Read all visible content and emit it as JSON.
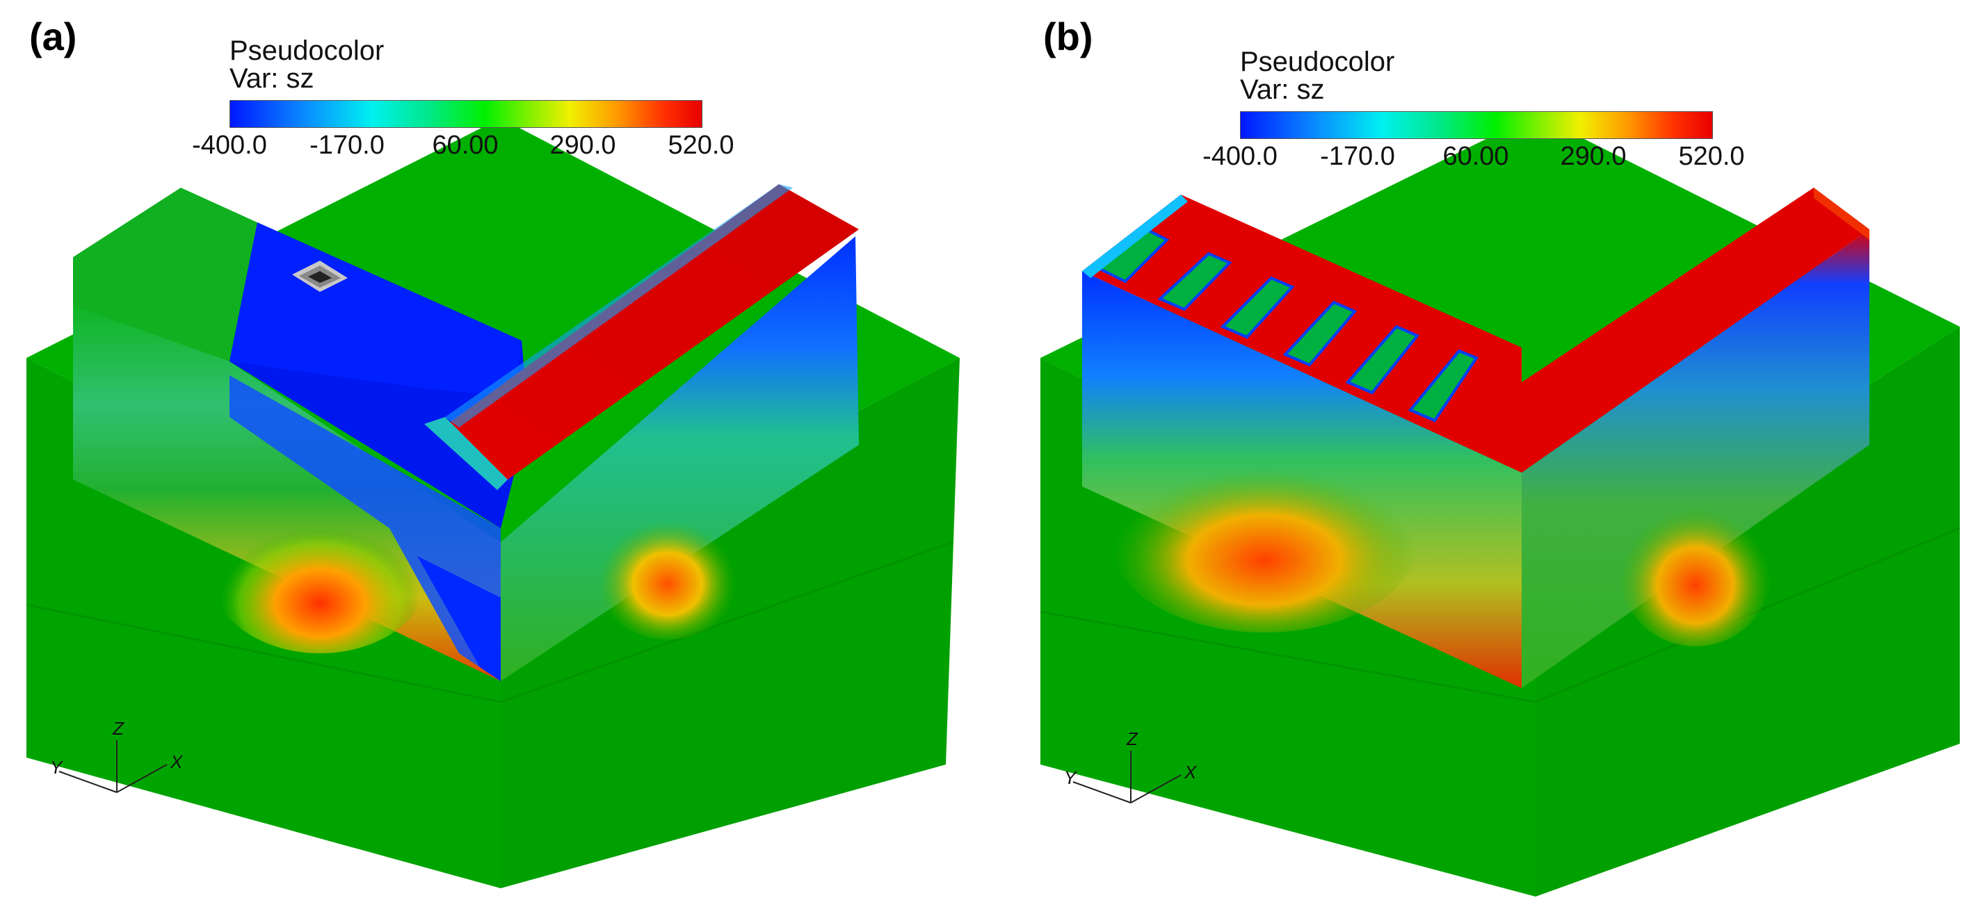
{
  "panels": [
    {
      "label": "(a)",
      "legend": {
        "title": "Pseudocolor",
        "var": "Var: sz",
        "ticks": [
          "-400.0",
          "-170.0",
          "60.00",
          "290.0",
          "520.0"
        ]
      },
      "axes": {
        "x": "X",
        "y": "Y",
        "z": "Z"
      }
    },
    {
      "label": "(b)",
      "legend": {
        "title": "Pseudocolor",
        "var": "Var: sz",
        "ticks": [
          "-400.0",
          "-170.0",
          "60.00",
          "290.0",
          "520.0"
        ]
      },
      "axes": {
        "x": "X",
        "y": "Y",
        "z": "Z"
      }
    }
  ],
  "colors": {
    "base_green": "#00a800",
    "base_green_dark": "#008800",
    "low_blue": "#0018ff",
    "high_red": "#e00000"
  }
}
